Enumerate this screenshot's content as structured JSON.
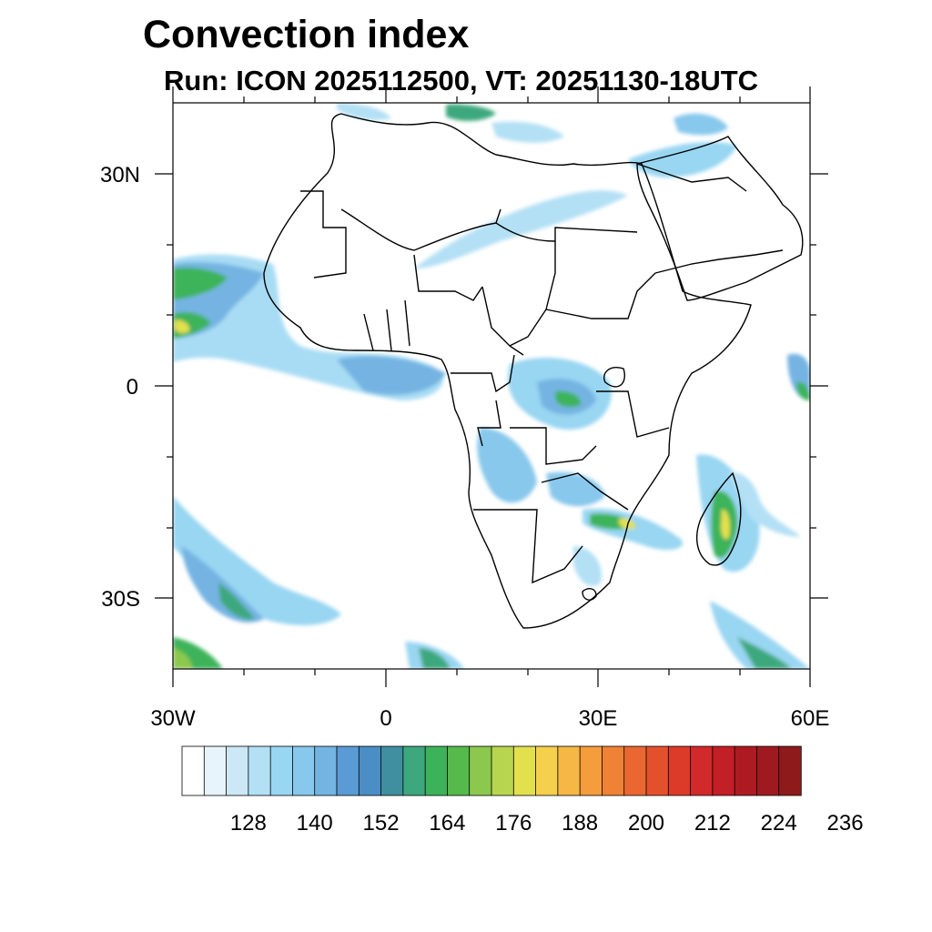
{
  "title": "Convection index",
  "subtitle": "Run: ICON 2025112500,  VT: 20251130-18UTC",
  "chart_data": {
    "type": "heatmap",
    "title": "Convection index",
    "subtitle": "Run: ICON 2025112500,  VT: 20251130-18UTC",
    "lon_range": [
      -30,
      60
    ],
    "lat_range": [
      -40,
      40
    ],
    "x_ticks": [
      {
        "value": -30,
        "label": "30W"
      },
      {
        "value": 0,
        "label": "0"
      },
      {
        "value": 30,
        "label": "30E"
      },
      {
        "value": 60,
        "label": "60E"
      }
    ],
    "y_ticks": [
      {
        "value": 30,
        "label": "30N"
      },
      {
        "value": 0,
        "label": "0"
      },
      {
        "value": -30,
        "label": "30S"
      }
    ],
    "colorbar": {
      "levels": [
        116,
        120,
        124,
        128,
        132,
        136,
        140,
        144,
        148,
        152,
        156,
        160,
        164,
        168,
        172,
        176,
        180,
        184,
        188,
        192,
        196,
        200,
        204,
        208,
        212,
        216,
        220,
        224,
        228,
        232,
        236
      ],
      "labels": [
        "128",
        "140",
        "152",
        "164",
        "176",
        "188",
        "200",
        "212",
        "224",
        "236"
      ],
      "colors": [
        "#ffffff",
        "#e8f4fb",
        "#cce8f6",
        "#b3e0f5",
        "#99d6f2",
        "#88c8ec",
        "#74b4e2",
        "#5b9bd5",
        "#4a8ec5",
        "#3f8fa0",
        "#3da87e",
        "#3cb35a",
        "#55b94b",
        "#8cc84e",
        "#b7d54e",
        "#e3e04e",
        "#f4d04c",
        "#f6b745",
        "#f59c3c",
        "#f08236",
        "#ea6731",
        "#e3512c",
        "#dc3b2a",
        "#d22a2a",
        "#c21f26",
        "#ae1a22",
        "#9e1a20",
        "#8e1a1c"
      ]
    },
    "cells": [
      {
        "lon": -29,
        "lat": 14,
        "value": 176
      },
      {
        "lon": -29,
        "lat": 10,
        "value": 190
      },
      {
        "lon": -25,
        "lat": 16,
        "value": 160
      },
      {
        "lon": -20,
        "lat": 14,
        "value": 150
      },
      {
        "lon": -15,
        "lat": 8,
        "value": 140
      },
      {
        "lon": -5,
        "lat": 4,
        "value": 140
      },
      {
        "lon": 5,
        "lat": 4,
        "value": 140
      },
      {
        "lon": 10,
        "lat": 0,
        "value": 136
      },
      {
        "lon": 25,
        "lat": 0,
        "value": 150
      },
      {
        "lon": 27,
        "lat": -2,
        "value": 168
      },
      {
        "lon": 20,
        "lat": -10,
        "value": 140
      },
      {
        "lon": 13,
        "lat": -12,
        "value": 140
      },
      {
        "lon": 28,
        "lat": -20,
        "value": 170
      },
      {
        "lon": 33,
        "lat": -20,
        "value": 180
      },
      {
        "lon": 47,
        "lat": -20,
        "value": 184
      },
      {
        "lon": 46,
        "lat": -24,
        "value": 172
      },
      {
        "lon": 50,
        "lat": -16,
        "value": 150
      },
      {
        "lon": 35,
        "lat": 25,
        "value": 140
      },
      {
        "lon": 10,
        "lat": 20,
        "value": 140
      },
      {
        "lon": 20,
        "lat": 22,
        "value": 136
      },
      {
        "lon": 45,
        "lat": 30,
        "value": 150
      },
      {
        "lon": 50,
        "lat": 35,
        "value": 148
      },
      {
        "lon": 15,
        "lat": 38,
        "value": 150
      },
      {
        "lon": -26,
        "lat": -28,
        "value": 150
      },
      {
        "lon": -22,
        "lat": -30,
        "value": 160
      },
      {
        "lon": -28,
        "lat": -37,
        "value": 165
      },
      {
        "lon": 55,
        "lat": -37,
        "value": 155
      },
      {
        "lon": 59,
        "lat": 1,
        "value": 150
      }
    ]
  }
}
